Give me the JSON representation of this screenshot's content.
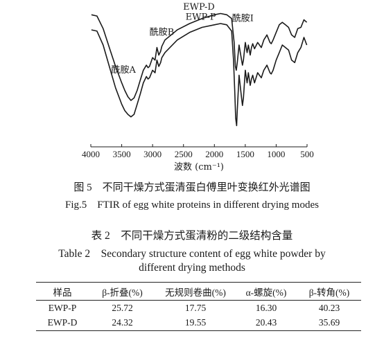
{
  "chart_data": {
    "type": "line",
    "title": "",
    "xlabel": "波数 (cm⁻¹)",
    "ylabel": "",
    "xlim": [
      4000,
      500
    ],
    "x_reversed": true,
    "xticks": [
      4000,
      3500,
      3000,
      2500,
      2000,
      1500,
      1000,
      500
    ],
    "grid": false,
    "series": [
      {
        "name": "EWP-D",
        "x": [
          3990,
          3900,
          3800,
          3700,
          3600,
          3500,
          3450,
          3400,
          3350,
          3300,
          3250,
          3200,
          3150,
          3100,
          3075,
          3050,
          3000,
          2960,
          2930,
          2900,
          2870,
          2850,
          2800,
          2600,
          2400,
          2200,
          2000,
          1900,
          1800,
          1720,
          1680,
          1660,
          1645,
          1630,
          1600,
          1560,
          1545,
          1530,
          1500,
          1470,
          1450,
          1420,
          1400,
          1380,
          1350,
          1300,
          1240,
          1200,
          1150,
          1100,
          1080,
          1050,
          1000,
          950,
          900,
          850,
          800,
          750,
          700,
          650,
          600,
          550,
          505
        ],
        "y": [
          0.96,
          0.95,
          0.85,
          0.7,
          0.55,
          0.42,
          0.36,
          0.31,
          0.28,
          0.3,
          0.36,
          0.44,
          0.52,
          0.56,
          0.54,
          0.55,
          0.62,
          0.6,
          0.7,
          0.64,
          0.67,
          0.71,
          0.76,
          0.84,
          0.89,
          0.93,
          0.96,
          0.97,
          0.96,
          0.93,
          0.74,
          0.55,
          0.52,
          0.58,
          0.72,
          0.6,
          0.56,
          0.6,
          0.74,
          0.66,
          0.72,
          0.64,
          0.7,
          0.73,
          0.69,
          0.74,
          0.7,
          0.76,
          0.8,
          0.74,
          0.73,
          0.76,
          0.82,
          0.88,
          0.9,
          0.88,
          0.86,
          0.8,
          0.78,
          0.85,
          0.86,
          0.92,
          0.9
        ]
      },
      {
        "name": "EWP-P",
        "x": [
          3990,
          3900,
          3800,
          3700,
          3600,
          3500,
          3450,
          3400,
          3350,
          3300,
          3250,
          3200,
          3150,
          3100,
          3075,
          3050,
          3000,
          2960,
          2930,
          2900,
          2870,
          2850,
          2800,
          2600,
          2400,
          2200,
          2000,
          1900,
          1800,
          1720,
          1690,
          1670,
          1655,
          1640,
          1630,
          1600,
          1560,
          1545,
          1530,
          1500,
          1470,
          1450,
          1420,
          1400,
          1380,
          1350,
          1300,
          1240,
          1200,
          1150,
          1100,
          1080,
          1050,
          1000,
          950,
          900,
          850,
          800,
          750,
          700,
          650,
          600,
          550,
          505
        ],
        "y": [
          0.84,
          0.83,
          0.72,
          0.55,
          0.38,
          0.25,
          0.2,
          0.17,
          0.15,
          0.17,
          0.25,
          0.33,
          0.42,
          0.47,
          0.45,
          0.46,
          0.52,
          0.5,
          0.6,
          0.55,
          0.58,
          0.62,
          0.66,
          0.76,
          0.82,
          0.86,
          0.88,
          0.89,
          0.88,
          0.83,
          0.6,
          0.35,
          0.14,
          0.08,
          0.2,
          0.48,
          0.3,
          0.24,
          0.3,
          0.52,
          0.42,
          0.5,
          0.4,
          0.45,
          0.48,
          0.42,
          0.5,
          0.46,
          0.52,
          0.56,
          0.5,
          0.49,
          0.52,
          0.6,
          0.66,
          0.72,
          0.7,
          0.68,
          0.6,
          0.58,
          0.66,
          0.7,
          0.78,
          0.72
        ]
      }
    ],
    "annotations": [
      {
        "text": "EWP-D",
        "x": 2250,
        "y": 1.0
      },
      {
        "text": "EWP-P",
        "x": 2220,
        "y": 0.92
      },
      {
        "text": "酰胺A",
        "x": 3470,
        "y": 0.5
      },
      {
        "text": "酰胺B",
        "x": 2850,
        "y": 0.8
      },
      {
        "text": "酰胺I",
        "x": 1540,
        "y": 0.91
      }
    ]
  },
  "figure": {
    "caption_cn": "图 5　不同干燥方式蛋清蛋白傅里叶变换红外光谱图",
    "caption_en": "Fig.5　FTIR of egg white proteins in different drying modes"
  },
  "table": {
    "caption_cn": "表 2　不同干燥方式蛋清粉的二级结构含量",
    "caption_en_line1": "Table 2　Secondary structure content of egg white powder by",
    "caption_en_line2": "different drying methods",
    "headers": [
      "样品",
      "β-折叠(%)",
      "无规则卷曲(%)",
      "α-螺旋(%)",
      "β-转角(%)"
    ],
    "rows": [
      [
        "EWP-P",
        "25.72",
        "17.75",
        "16.30",
        "40.23"
      ],
      [
        "EWP-D",
        "24.32",
        "19.55",
        "20.43",
        "35.69"
      ]
    ]
  }
}
